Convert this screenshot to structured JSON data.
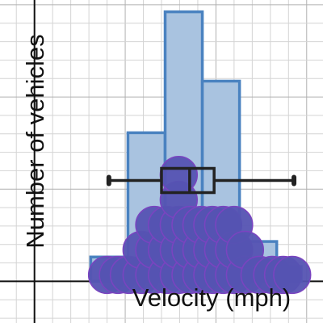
{
  "chart_data": {
    "type": "histogram",
    "xlabel": "Velocity (mph)",
    "ylabel": "Number of vehicles",
    "grid": true,
    "xlim": [
      -1.9,
      15.9
    ],
    "ylim": [
      -2.26,
      15.26
    ],
    "axis_origin": [
      0,
      0
    ],
    "bins": [
      {
        "x0": 3.1,
        "x1": 5.15,
        "count": 1.32
      },
      {
        "x0": 5.15,
        "x1": 7.2,
        "count": 8.06
      },
      {
        "x0": 7.2,
        "x1": 9.25,
        "count": 14.62
      },
      {
        "x0": 9.25,
        "x1": 11.3,
        "count": 10.86
      },
      {
        "x0": 11.3,
        "x1": 13.35,
        "count": 2.16
      },
      {
        "x0": 13.35,
        "x1": 14.7,
        "count": 0.8
      }
    ],
    "boxplot": {
      "min": 4.1,
      "q1": 7.0,
      "median": 8.55,
      "q3": 9.9,
      "max": 14.3,
      "y": 5.47
    },
    "dots": {
      "radius_x": 1.02,
      "columns": [
        {
          "x": 4.0,
          "count": 1
        },
        {
          "x": 4.6,
          "count": 1
        },
        {
          "x": 5.2,
          "count": 1
        },
        {
          "x": 5.9,
          "count": 2
        },
        {
          "x": 6.6,
          "count": 3
        },
        {
          "x": 7.3,
          "count": 3
        },
        {
          "x": 7.95,
          "count": 5
        },
        {
          "x": 8.6,
          "count": 3
        },
        {
          "x": 9.2,
          "count": 3
        },
        {
          "x": 9.8,
          "count": 3
        },
        {
          "x": 10.4,
          "count": 3
        },
        {
          "x": 11.0,
          "count": 3
        },
        {
          "x": 11.6,
          "count": 2
        },
        {
          "x": 12.4,
          "count": 1
        },
        {
          "x": 13.1,
          "count": 1
        },
        {
          "x": 13.7,
          "count": 1
        },
        {
          "x": 14.2,
          "count": 1
        }
      ]
    }
  },
  "colors": {
    "bar_fill": "#a9c3e0",
    "bar_stroke": "#4a82c0",
    "dot_fill": "#5553b2",
    "dot_edge": "#7a44c0",
    "box_stroke": "#222222",
    "grid_minor": "#d4d4d4",
    "grid_major": "#b0b0b0",
    "axis": "#111111"
  }
}
